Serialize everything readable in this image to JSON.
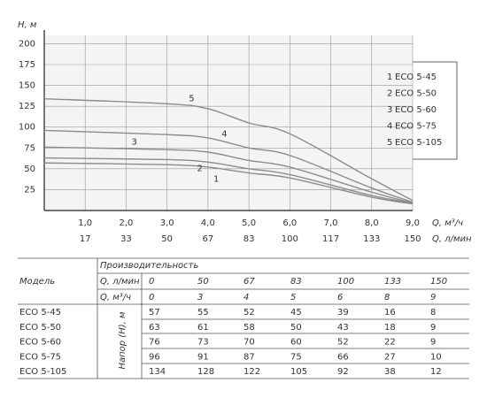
{
  "chart_data": {
    "type": "line",
    "ylabel": "H, м",
    "xlabel": "Q, м³/ч",
    "x2label": "Q, л/мин",
    "x": [
      0,
      3,
      4,
      5,
      6,
      8,
      9
    ],
    "series": [
      {
        "name": "ECO 5-45",
        "label": "1",
        "color": "#8c8c8c",
        "values": [
          57,
          55,
          52,
          45,
          39,
          16,
          8
        ]
      },
      {
        "name": "ECO 5-50",
        "label": "2",
        "color": "#8c8c8c",
        "values": [
          63,
          61,
          58,
          50,
          43,
          18,
          9
        ]
      },
      {
        "name": "ECO 5-60",
        "label": "3",
        "color": "#8c8c8c",
        "values": [
          76,
          73,
          70,
          60,
          52,
          22,
          9
        ]
      },
      {
        "name": "ECO 5-75",
        "label": "4",
        "color": "#8c8c8c",
        "values": [
          96,
          91,
          87,
          75,
          66,
          27,
          10
        ]
      },
      {
        "name": "ECO 5-105",
        "label": "5",
        "color": "#8c8c8c",
        "values": [
          134,
          128,
          122,
          105,
          92,
          38,
          12
        ]
      }
    ],
    "xlim": [
      0,
      9
    ],
    "ylim": [
      0,
      210
    ],
    "yticks": [
      25,
      50,
      75,
      100,
      125,
      150,
      175,
      200
    ],
    "xticks": [
      {
        "value": 1,
        "label": "1,0"
      },
      {
        "value": 2,
        "label": "2,0"
      },
      {
        "value": 3,
        "label": "3,0"
      },
      {
        "value": 4,
        "label": "4,0"
      },
      {
        "value": 5,
        "label": "5,0"
      },
      {
        "value": 6,
        "label": "6,0"
      },
      {
        "value": 7,
        "label": "7,0"
      },
      {
        "value": 8,
        "label": "8,0"
      },
      {
        "value": 9,
        "label": "9,0"
      }
    ],
    "x2tick_labels": [
      17,
      33,
      50,
      67,
      83,
      100,
      117,
      133,
      150
    ],
    "grid": true
  },
  "table": {
    "model_header": "Модель",
    "perf_header": "Производительность",
    "flow_lmin_label": "Q, л/мин",
    "flow_m3h_label": "Q, м³/ч",
    "head_label": "Напор (H), м",
    "flow_lmin": [
      0,
      50,
      67,
      83,
      100,
      133,
      150
    ]
  }
}
